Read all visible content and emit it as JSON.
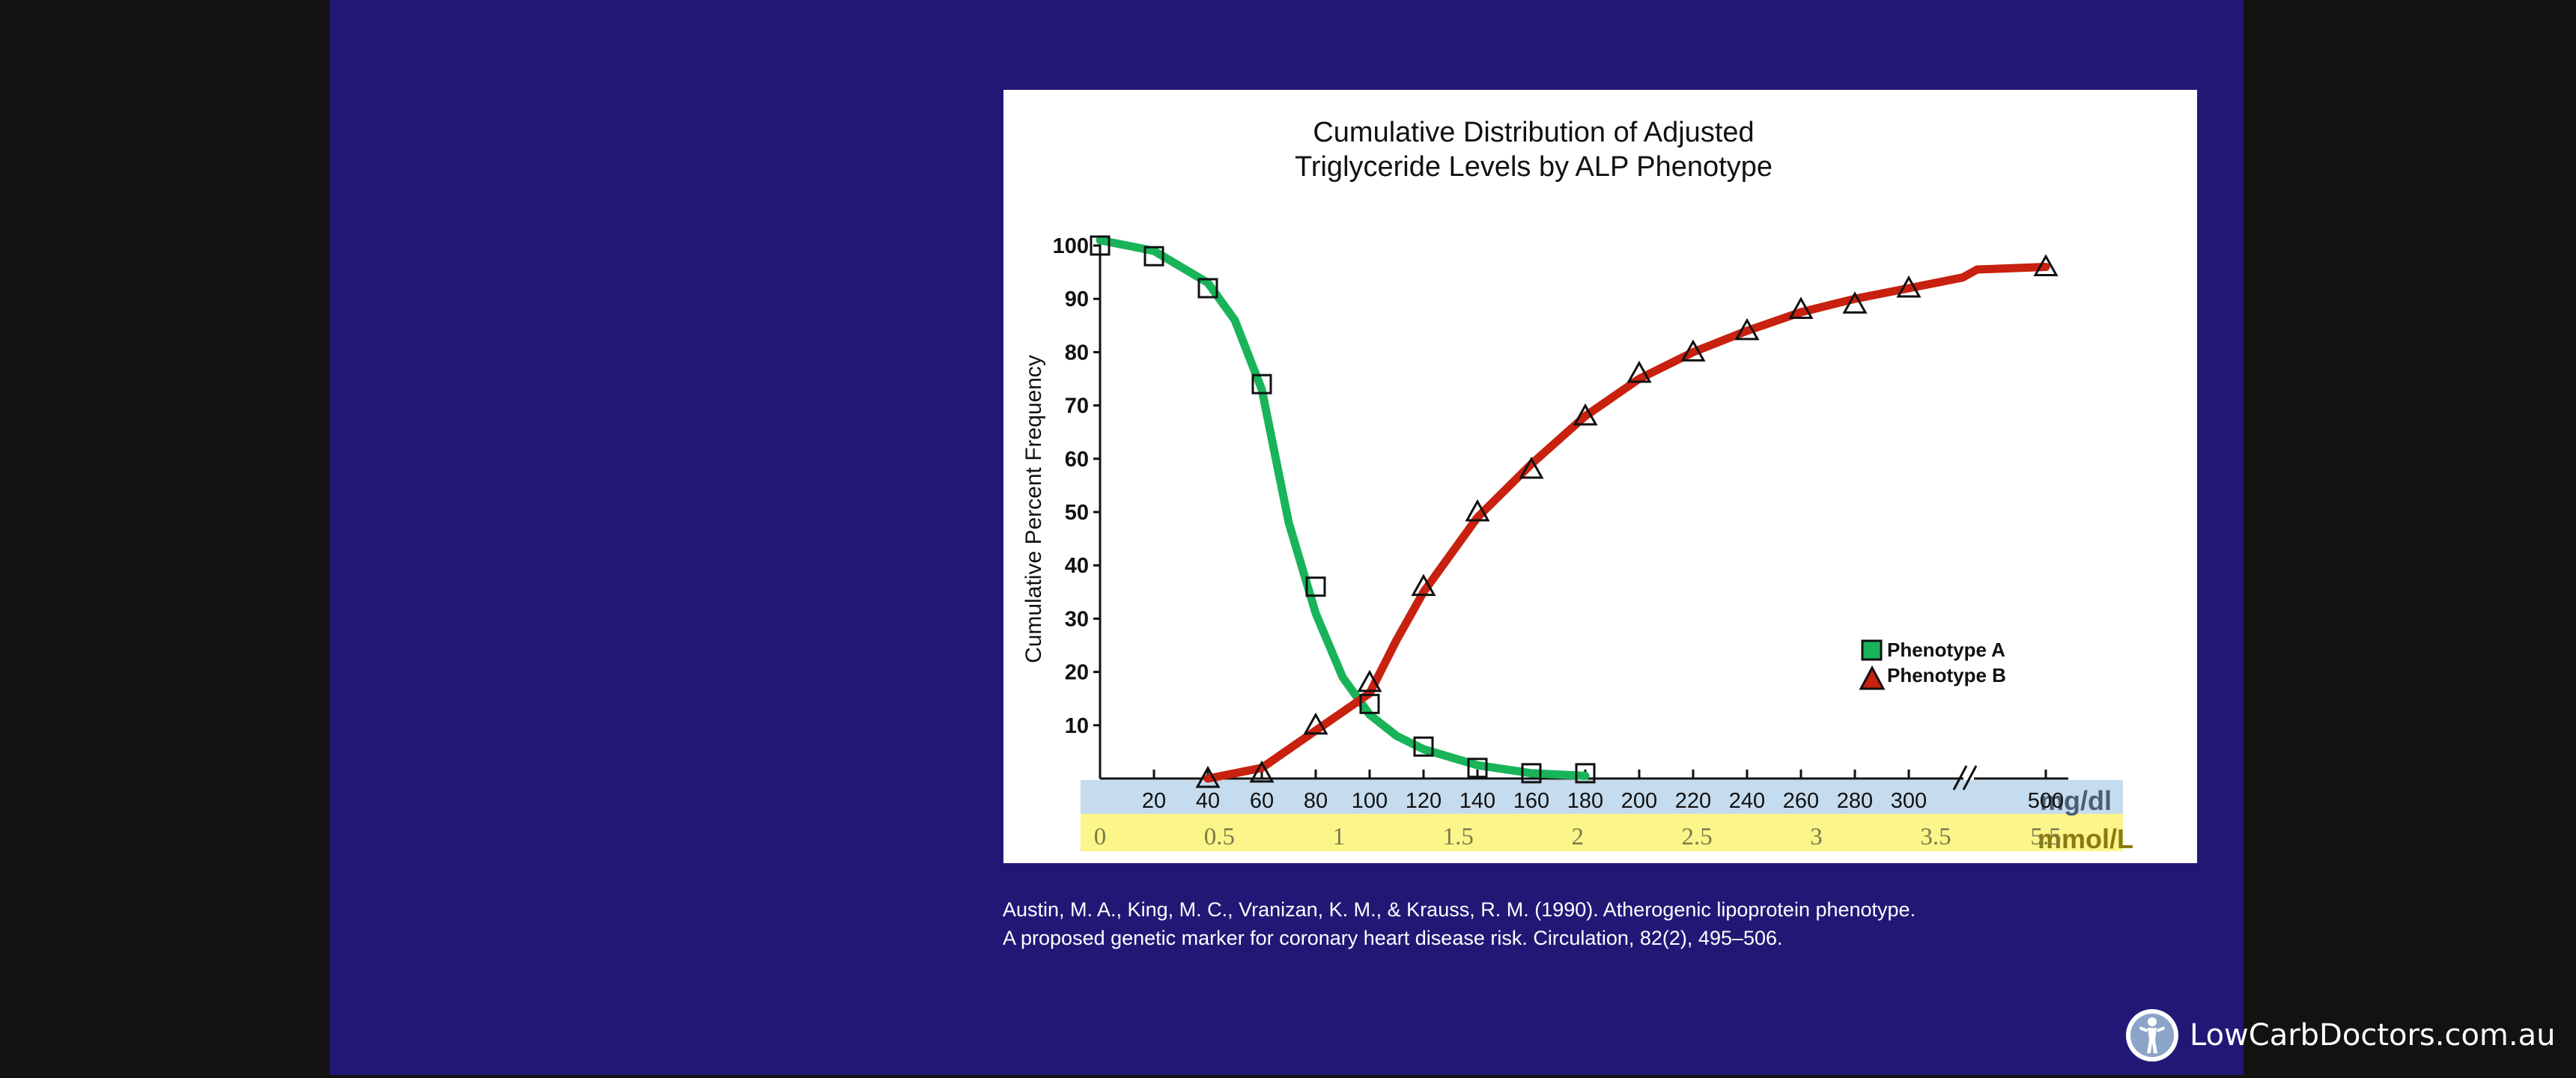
{
  "colors": {
    "page_bg": "#141210",
    "slide_bg": "#211876",
    "phenotype_a": "#19b45a",
    "phenotype_b": "#c8210f",
    "mg_band": "#c5dcee",
    "mmol_band": "#fbf58a"
  },
  "citation": {
    "line1": "Austin, M. A., King, M. C., Vranizan, K. M., & Krauss, R. M. (1990). Atherogenic lipoprotein phenotype.",
    "line2": "A proposed genetic marker for coronary heart disease risk. Circulation, 82(2), 495–506."
  },
  "brand": {
    "text": "LowCarbDoctors.com.au",
    "icon": "body-silhouette-logo-icon"
  },
  "chart_data": {
    "type": "line",
    "title_line1": "Cumulative Distribution of Adjusted",
    "title_line2": "Triglyceride Levels by ALP Phenotype",
    "ylabel": "Cumulative Percent Frequency",
    "ylim": [
      0,
      100
    ],
    "yticks": [
      10,
      20,
      30,
      40,
      50,
      60,
      70,
      80,
      90,
      100
    ],
    "x_mg_ticks": [
      "20",
      "40",
      "60",
      "80",
      "100",
      "120",
      "140",
      "160",
      "180",
      "200",
      "220",
      "240",
      "260",
      "280",
      "300",
      "500"
    ],
    "x_mg_unit": "mg/dl",
    "x_mmol_ticks": [
      "0",
      "0.5",
      "1",
      "1.5",
      "2",
      "2.5",
      "3",
      "3.5",
      "5.5"
    ],
    "x_mmol_unit": "mmol/L",
    "axis_break_between": [
      300,
      500
    ],
    "legend": {
      "position": "lower-right",
      "entries": [
        "Phenotype  A",
        "Phenotype  B"
      ]
    },
    "series": [
      {
        "name": "Phenotype  A",
        "marker": "square",
        "points": [
          [
            0,
            100
          ],
          [
            20,
            98
          ],
          [
            40,
            92
          ],
          [
            60,
            74
          ],
          [
            80,
            36
          ],
          [
            100,
            14
          ],
          [
            120,
            6
          ],
          [
            140,
            2
          ],
          [
            160,
            1
          ],
          [
            180,
            1
          ]
        ],
        "curve": [
          [
            0,
            101
          ],
          [
            20,
            99
          ],
          [
            40,
            93
          ],
          [
            50,
            86
          ],
          [
            60,
            73
          ],
          [
            70,
            48
          ],
          [
            80,
            31
          ],
          [
            90,
            19
          ],
          [
            100,
            12
          ],
          [
            110,
            8
          ],
          [
            120,
            5.5
          ],
          [
            140,
            2.5
          ],
          [
            160,
            1
          ],
          [
            180,
            0.5
          ]
        ]
      },
      {
        "name": "Phenotype  B",
        "marker": "triangle",
        "points": [
          [
            40,
            0
          ],
          [
            60,
            1
          ],
          [
            80,
            10
          ],
          [
            100,
            18
          ],
          [
            120,
            36
          ],
          [
            140,
            50
          ],
          [
            160,
            58
          ],
          [
            180,
            68
          ],
          [
            200,
            76
          ],
          [
            220,
            80
          ],
          [
            240,
            84
          ],
          [
            260,
            88
          ],
          [
            280,
            89
          ],
          [
            300,
            92
          ],
          [
            500,
            96
          ]
        ],
        "curve": [
          [
            40,
            0
          ],
          [
            60,
            2
          ],
          [
            80,
            9
          ],
          [
            100,
            16
          ],
          [
            110,
            26
          ],
          [
            120,
            35
          ],
          [
            140,
            49
          ],
          [
            160,
            59
          ],
          [
            180,
            68
          ],
          [
            200,
            75
          ],
          [
            220,
            80
          ],
          [
            240,
            84
          ],
          [
            260,
            87.5
          ],
          [
            280,
            90
          ],
          [
            300,
            92
          ],
          [
            320,
            94
          ],
          [
            350,
            95.5
          ],
          [
            500,
            96
          ]
        ]
      }
    ]
  }
}
